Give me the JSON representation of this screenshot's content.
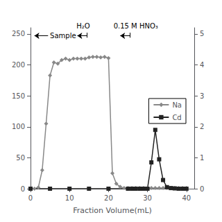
{
  "chart_data": {
    "type": "line",
    "xlabel": "Fraction Volume(mL)",
    "xlim": [
      0,
      42
    ],
    "xticks": [
      0,
      10,
      20,
      30,
      40
    ],
    "ylim": [
      0,
      260
    ],
    "yticks": [
      0,
      50,
      100,
      150,
      200,
      250
    ],
    "y2lim": [
      0,
      5.2
    ],
    "y2ticks": [
      0,
      1,
      2,
      3,
      4,
      5
    ],
    "grid": false,
    "legend": "right",
    "series": [
      {
        "name": "Na",
        "color": "#888888",
        "marker": "diamond",
        "x": [
          1,
          2,
          3,
          4,
          5,
          6,
          7,
          8,
          9,
          10,
          11,
          12,
          13,
          14,
          15,
          16,
          17,
          18,
          19,
          20,
          21,
          22,
          23,
          24,
          25,
          26,
          27,
          28,
          29,
          30,
          31,
          32,
          33,
          34,
          35,
          36,
          37,
          38,
          39,
          40
        ],
        "values": [
          0,
          2,
          30,
          105,
          183,
          204,
          202,
          208,
          210,
          208,
          210,
          210,
          210,
          210,
          212,
          213,
          213,
          212,
          213,
          211,
          25,
          8,
          3,
          1,
          1,
          1,
          1,
          1,
          1,
          1,
          1,
          1,
          1,
          1,
          1,
          1,
          1,
          1,
          1,
          1
        ]
      },
      {
        "name": "Cd",
        "color": "#222222",
        "marker": "square",
        "axis": "y2",
        "x": [
          0,
          5,
          10,
          15,
          20,
          25,
          26,
          27,
          28,
          29,
          30,
          31,
          32,
          33,
          34,
          35,
          36,
          37,
          38,
          39,
          40
        ],
        "values": [
          0,
          0,
          0,
          0,
          0,
          0,
          0,
          0,
          0,
          0,
          0.0,
          0.85,
          1.9,
          0.95,
          0.28,
          0.05,
          0.02,
          0.01,
          0,
          0,
          0
        ]
      }
    ],
    "annotations": [
      {
        "text": "Sample",
        "x": 5.0,
        "y": 247,
        "arrow": {
          "from": [
            4.5,
            247
          ],
          "to": [
            1.0,
            247
          ]
        }
      },
      {
        "text": "H₂O",
        "x": 13.5,
        "y": 255,
        "arrow": {
          "from": [
            14.5,
            247
          ],
          "to": [
            12.0,
            247
          ]
        },
        "bar": {
          "from": [
            14.5,
            244
          ],
          "to": [
            14.5,
            252
          ]
        }
      },
      {
        "text": "0.15 M HNO₃",
        "x": 27.0,
        "y": 255,
        "arrow": {
          "from": [
            25.5,
            247
          ],
          "to": [
            23.0,
            247
          ]
        },
        "bar": {
          "from": [
            25.5,
            244
          ],
          "to": [
            25.5,
            252
          ]
        }
      }
    ]
  }
}
